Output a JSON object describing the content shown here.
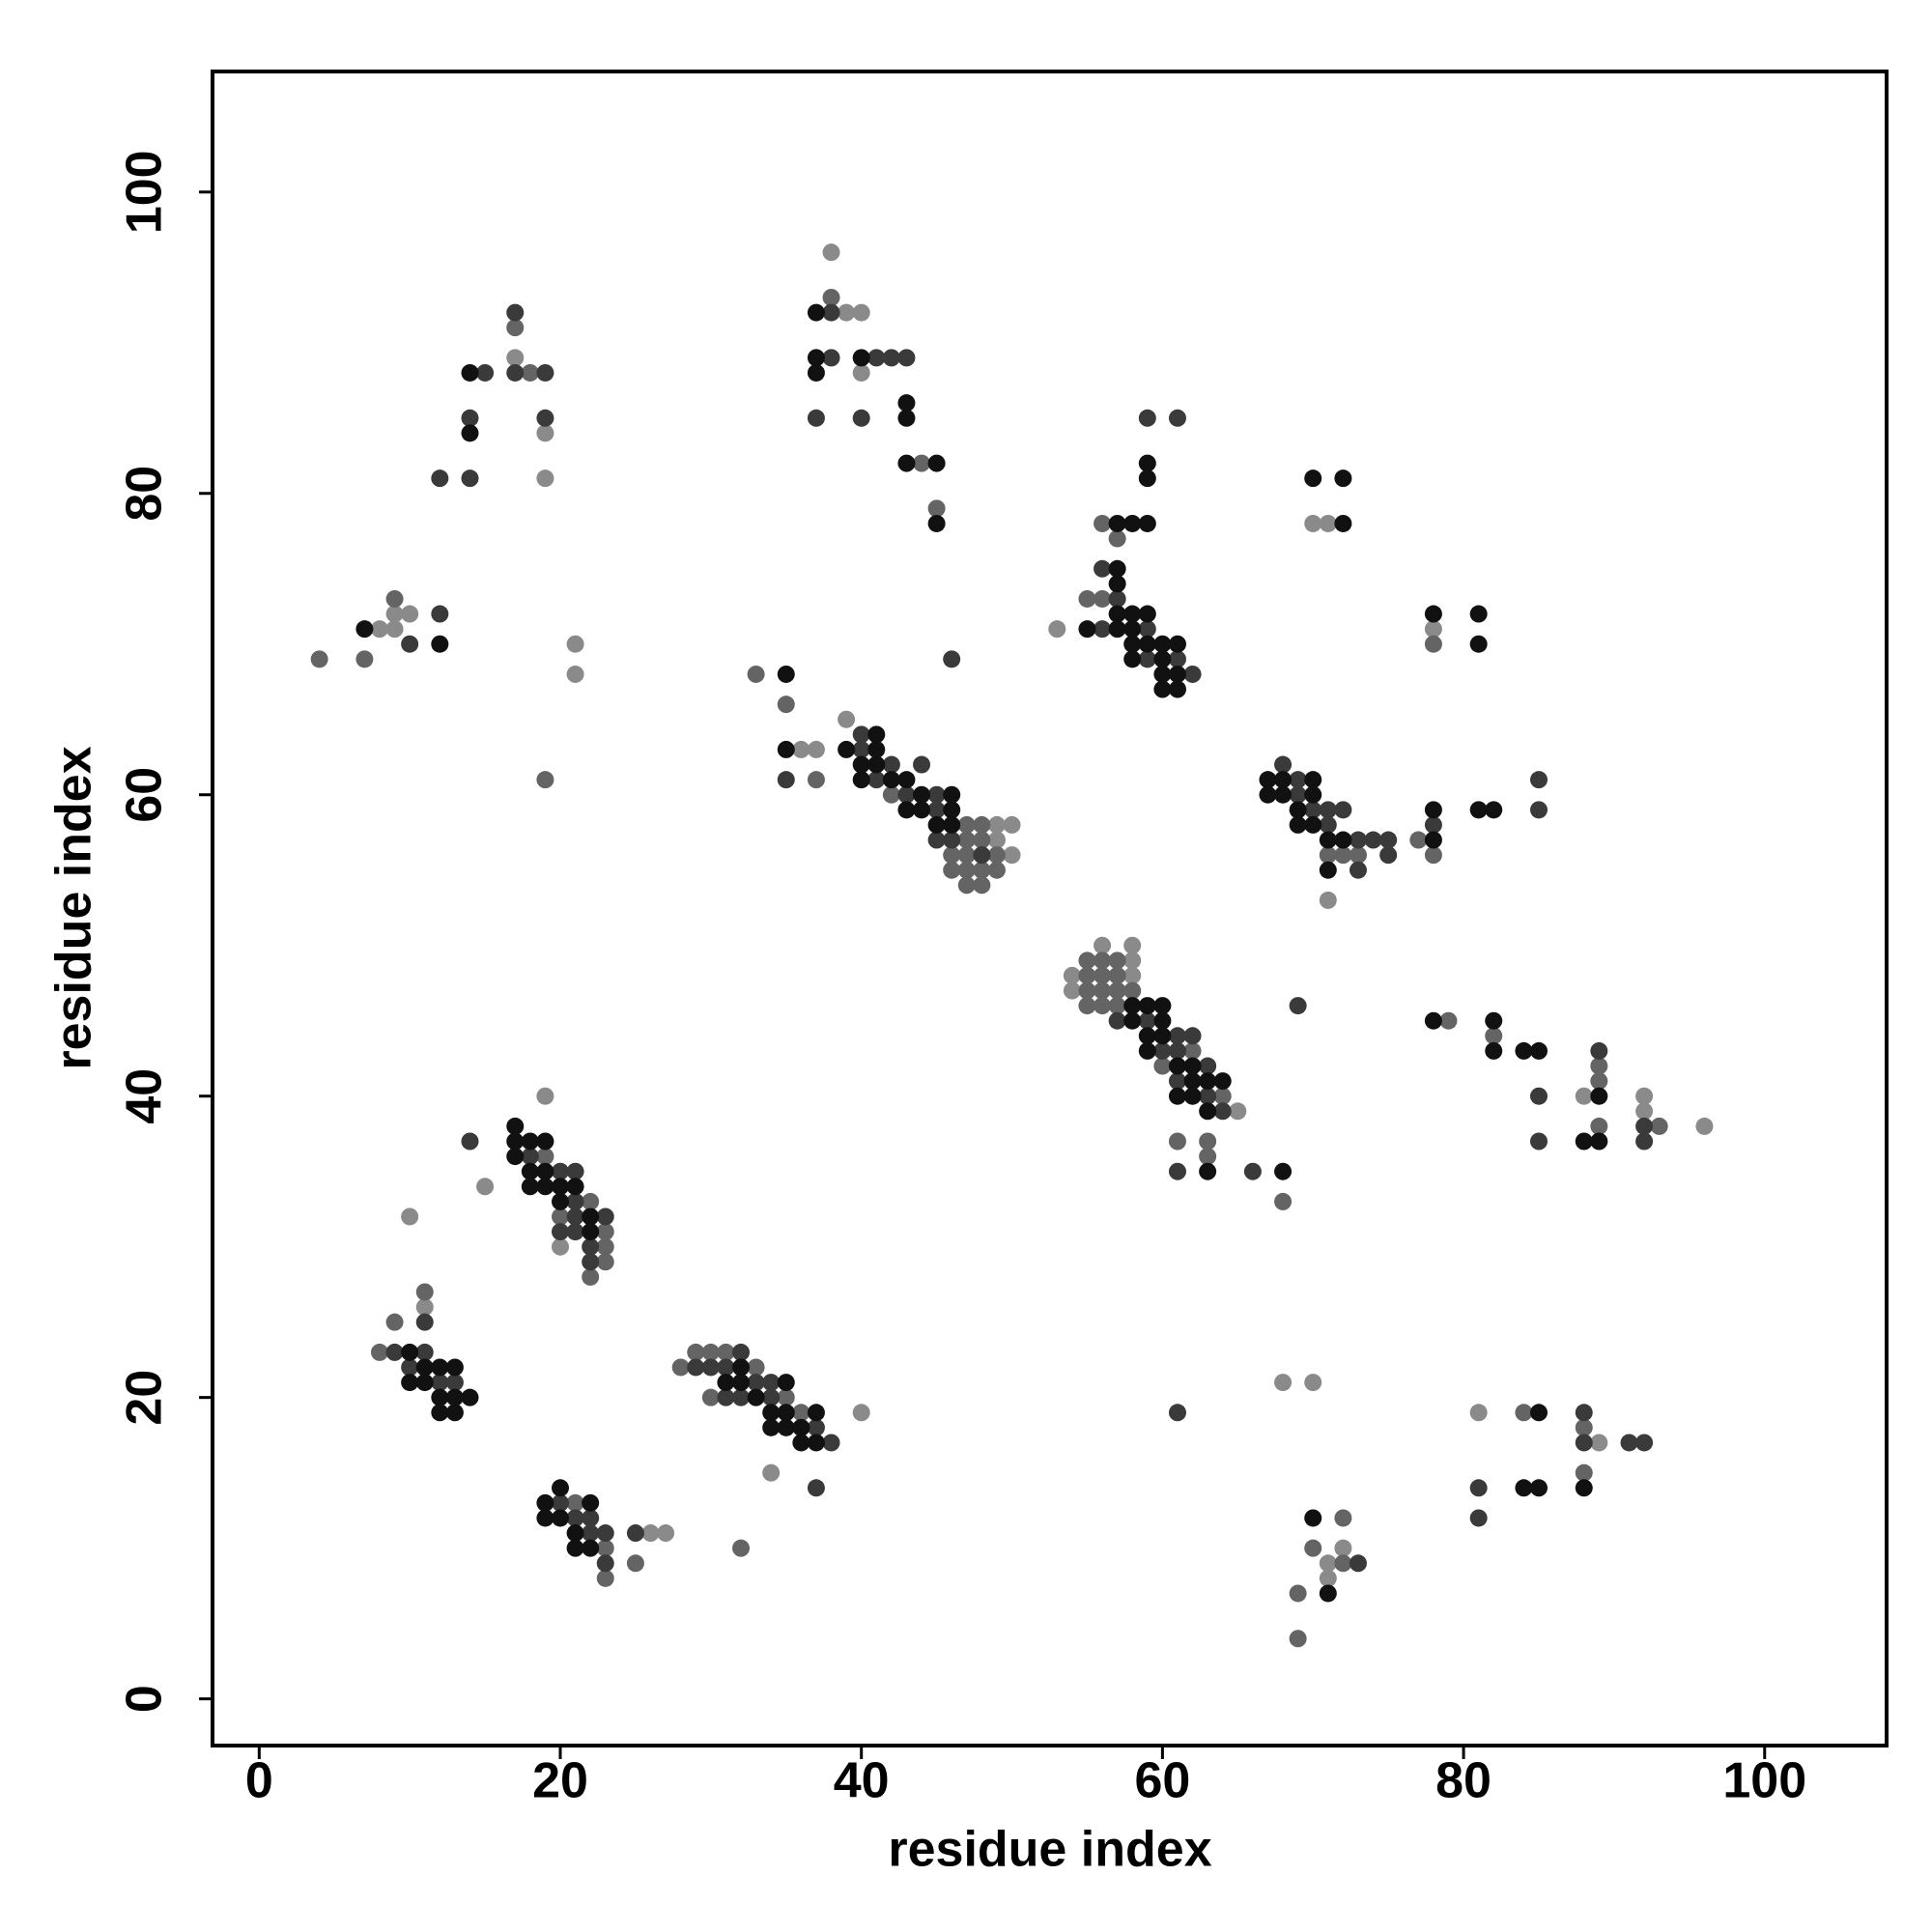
{
  "chart_data": {
    "type": "scatter",
    "xlabel": "residue index",
    "ylabel": "residue index",
    "xlim": [
      -3.1,
      108.1
    ],
    "ylim": [
      -3.1,
      108.0
    ],
    "xticks": [
      0,
      20,
      40,
      60,
      80,
      100
    ],
    "yticks": [
      0,
      20,
      40,
      60,
      80,
      100
    ],
    "grid": false,
    "series": [
      {
        "color": "#8a8a8a",
        "x": [
          17,
          19,
          19,
          8,
          9,
          9,
          10,
          21,
          21,
          38,
          39,
          40,
          40,
          36,
          37,
          39,
          49,
          50,
          49,
          50,
          53,
          70,
          71,
          78,
          71,
          54,
          54,
          56,
          58,
          58,
          58,
          65,
          88,
          92,
          92,
          96,
          19,
          15,
          20,
          10,
          11,
          40,
          34,
          26,
          27,
          68,
          70,
          72,
          71,
          71,
          81,
          89
        ],
        "values": [
          89,
          84,
          81,
          71,
          72,
          71,
          72,
          70,
          68,
          96,
          92,
          92,
          88,
          63,
          63,
          65,
          58,
          58,
          57,
          56,
          71,
          78,
          78,
          71,
          53,
          48,
          47,
          50,
          50,
          49,
          48,
          39,
          40,
          40,
          39,
          38,
          40,
          34,
          30,
          32,
          26,
          19,
          15,
          11,
          11,
          21,
          21,
          10,
          9,
          8,
          19,
          17
        ]
      },
      {
        "color": "#646464",
        "x": [
          17,
          18,
          4,
          7,
          9,
          19,
          38,
          44,
          45,
          33,
          35,
          37,
          42,
          47,
          48,
          47,
          48,
          46,
          47,
          49,
          46,
          47,
          48,
          49,
          47,
          48,
          56,
          57,
          55,
          56,
          77,
          71,
          72,
          73,
          78,
          78,
          55,
          55,
          55,
          55,
          56,
          56,
          56,
          56,
          57,
          57,
          57,
          57,
          58,
          60,
          62,
          64,
          61,
          63,
          63,
          68,
          79,
          82,
          89,
          89,
          89,
          93,
          19,
          22,
          20,
          23,
          23,
          23,
          22,
          11,
          9,
          8,
          29,
          30,
          31,
          28,
          33,
          30,
          35,
          36,
          21,
          23,
          23,
          25,
          32,
          72,
          70,
          72,
          69,
          69,
          84,
          88,
          88
        ],
        "values": [
          91,
          88,
          69,
          69,
          73,
          61,
          93,
          82,
          79,
          68,
          66,
          61,
          60,
          58,
          58,
          57,
          57,
          56,
          56,
          56,
          55,
          55,
          55,
          55,
          54,
          54,
          78,
          77,
          73,
          73,
          57,
          56,
          56,
          56,
          56,
          70,
          49,
          48,
          47,
          46,
          49,
          48,
          47,
          46,
          49,
          48,
          47,
          46,
          47,
          42,
          43,
          40,
          37,
          37,
          36,
          33,
          45,
          44,
          42,
          41,
          38,
          38,
          36,
          33,
          32,
          31,
          30,
          29,
          28,
          27,
          25,
          23,
          23,
          23,
          23,
          22,
          22,
          20,
          20,
          19,
          13,
          10,
          8,
          9,
          10,
          12,
          10,
          9,
          7,
          4,
          19,
          18,
          15
        ]
      },
      {
        "color": "#3a3a3a",
        "x": [
          17,
          17,
          19,
          15,
          14,
          19,
          12,
          14,
          10,
          12,
          38,
          38,
          41,
          42,
          43,
          37,
          40,
          35,
          40,
          40,
          42,
          41,
          44,
          43,
          45,
          45,
          45,
          46,
          48,
          46,
          59,
          61,
          56,
          57,
          56,
          59,
          59,
          61,
          62,
          68,
          69,
          69,
          70,
          71,
          72,
          71,
          73,
          74,
          75,
          78,
          75,
          73,
          85,
          85,
          57,
          59,
          60,
          61,
          61,
          61,
          62,
          63,
          63,
          64,
          61,
          66,
          69,
          85,
          85,
          89,
          92,
          92,
          14,
          18,
          20,
          21,
          21,
          21,
          23,
          20,
          21,
          22,
          22,
          9,
          11,
          10,
          11,
          12,
          13,
          29,
          30,
          31,
          32,
          33,
          34,
          31,
          32,
          34,
          37,
          38,
          37,
          20,
          21,
          22,
          22,
          23,
          23,
          25,
          61,
          73,
          88,
          88,
          91,
          92,
          81,
          81
        ],
        "values": [
          92,
          88,
          88,
          88,
          85,
          85,
          81,
          81,
          70,
          72,
          92,
          89,
          89,
          89,
          89,
          85,
          85,
          61,
          64,
          63,
          62,
          61,
          62,
          60,
          60,
          59,
          57,
          57,
          56,
          69,
          85,
          85,
          75,
          73,
          71,
          71,
          69,
          69,
          68,
          62,
          61,
          60,
          59,
          59,
          59,
          58,
          57,
          57,
          57,
          58,
          56,
          55,
          61,
          59,
          45,
          45,
          43,
          44,
          43,
          41,
          44,
          42,
          40,
          39,
          35,
          35,
          46,
          40,
          37,
          43,
          38,
          37,
          37,
          36,
          35,
          35,
          33,
          32,
          32,
          31,
          31,
          30,
          29,
          23,
          23,
          22,
          25,
          21,
          21,
          22,
          22,
          22,
          23,
          21,
          21,
          20,
          20,
          20,
          18,
          17,
          14,
          13,
          12,
          12,
          11,
          11,
          9,
          11,
          19,
          9,
          19,
          17,
          17,
          17,
          14,
          12
        ]
      },
      {
        "color": "#111111",
        "x": [
          14,
          14,
          7,
          12,
          37,
          37,
          37,
          40,
          43,
          43,
          43,
          45,
          45,
          35,
          35,
          41,
          39,
          41,
          40,
          41,
          40,
          42,
          43,
          44,
          46,
          43,
          44,
          46,
          45,
          46,
          59,
          59,
          57,
          58,
          59,
          57,
          57,
          55,
          57,
          58,
          59,
          57,
          58,
          58,
          59,
          60,
          61,
          58,
          60,
          60,
          61,
          60,
          61,
          70,
          72,
          72,
          78,
          81,
          81,
          67,
          68,
          70,
          67,
          68,
          70,
          69,
          69,
          70,
          71,
          72,
          78,
          78,
          71,
          81,
          82,
          58,
          58,
          59,
          59,
          59,
          60,
          60,
          60,
          61,
          61,
          62,
          62,
          62,
          63,
          63,
          64,
          63,
          68,
          78,
          82,
          82,
          84,
          85,
          89,
          88,
          89,
          17,
          17,
          18,
          19,
          17,
          18,
          19,
          18,
          19,
          20,
          21,
          20,
          22,
          22,
          10,
          11,
          12,
          13,
          10,
          11,
          12,
          13,
          14,
          12,
          13,
          32,
          31,
          32,
          35,
          33,
          34,
          35,
          37,
          34,
          35,
          36,
          36,
          37,
          20,
          19,
          22,
          19,
          20,
          21,
          21,
          22,
          70,
          71,
          85,
          84,
          85,
          88
        ],
        "values": [
          88,
          84,
          71,
          70,
          92,
          89,
          88,
          89,
          86,
          85,
          82,
          82,
          78,
          68,
          63,
          64,
          63,
          63,
          62,
          62,
          61,
          61,
          61,
          60,
          60,
          59,
          59,
          59,
          58,
          58,
          82,
          81,
          78,
          78,
          78,
          75,
          74,
          71,
          72,
          72,
          72,
          71,
          71,
          70,
          70,
          70,
          70,
          69,
          69,
          68,
          68,
          67,
          67,
          81,
          81,
          78,
          72,
          72,
          70,
          61,
          61,
          61,
          60,
          60,
          60,
          59,
          58,
          58,
          57,
          57,
          57,
          59,
          55,
          59,
          59,
          46,
          45,
          46,
          44,
          43,
          46,
          45,
          44,
          42,
          40,
          42,
          41,
          40,
          41,
          39,
          41,
          35,
          35,
          45,
          45,
          43,
          43,
          43,
          40,
          37,
          37,
          38,
          37,
          37,
          37,
          36,
          35,
          35,
          34,
          34,
          34,
          34,
          33,
          32,
          31,
          23,
          22,
          22,
          22,
          21,
          21,
          20,
          20,
          20,
          19,
          19,
          22,
          21,
          21,
          21,
          20,
          19,
          19,
          19,
          18,
          18,
          18,
          17,
          17,
          14,
          13,
          13,
          12,
          12,
          11,
          10,
          10,
          12,
          7,
          19,
          14,
          14,
          14
        ]
      }
    ]
  }
}
